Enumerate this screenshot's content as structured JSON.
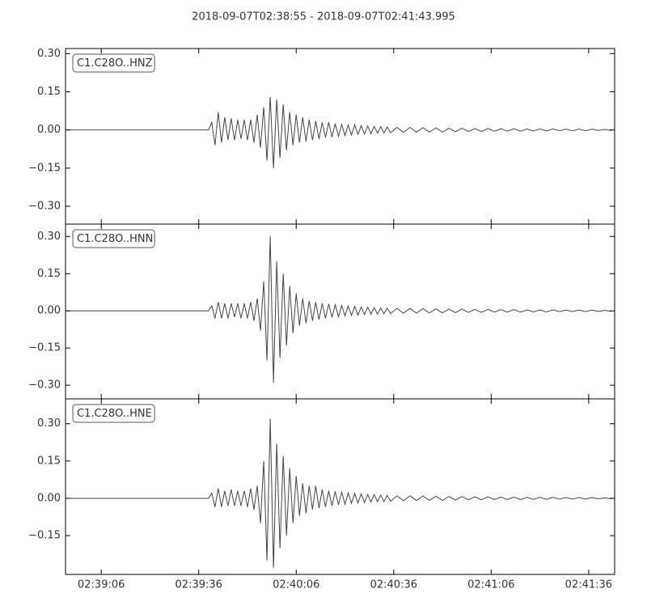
{
  "title": "2018-09-07T02:38:55  -  2018-09-07T02:41:43.995",
  "chart_data": [
    {
      "type": "line",
      "xlim": [
        0,
        168.995
      ],
      "ylim": [
        -0.37,
        0.32
      ],
      "yticks": [
        {
          "value": -0.3,
          "label": "−0.30"
        },
        {
          "value": -0.15,
          "label": "−0.15"
        },
        {
          "value": 0,
          "label": "0.00"
        },
        {
          "value": 0.15,
          "label": "0.15"
        },
        {
          "value": 0.3,
          "label": "0.30"
        }
      ],
      "x": [
        0,
        10,
        20,
        30,
        40,
        44,
        45,
        46,
        47,
        48,
        49,
        50,
        51,
        52,
        53,
        54,
        55,
        56,
        57,
        58,
        59,
        60,
        61,
        62,
        63,
        64,
        65,
        66,
        67,
        68,
        69,
        70,
        71,
        72,
        73,
        74,
        75,
        76,
        77,
        78,
        79,
        80,
        81,
        82,
        83,
        84,
        85,
        86,
        87,
        88,
        89,
        90,
        91,
        92,
        93,
        94,
        95,
        96,
        97,
        98,
        99,
        100,
        102,
        104,
        106,
        108,
        110,
        112,
        114,
        116,
        118,
        120,
        122,
        124,
        126,
        128,
        130,
        132,
        134,
        136,
        138,
        140,
        142,
        144,
        146,
        148,
        150,
        152,
        154,
        156,
        158,
        160,
        162,
        164,
        166,
        168
      ],
      "series": [
        {
          "name": "C1.C28O..HNZ",
          "color": "#444444",
          "values": [
            0,
            0,
            0,
            0,
            0,
            0,
            0.03,
            -0.06,
            0.07,
            -0.05,
            0.05,
            -0.04,
            0.045,
            -0.04,
            0.04,
            -0.035,
            0.04,
            -0.04,
            0.04,
            -0.05,
            0.06,
            -0.07,
            0.09,
            -0.12,
            0.13,
            -0.15,
            0.12,
            -0.11,
            0.1,
            -0.08,
            0.07,
            -0.06,
            0.06,
            -0.05,
            0.05,
            -0.045,
            0.04,
            -0.04,
            0.035,
            -0.035,
            0.03,
            -0.03,
            0.03,
            -0.028,
            0.025,
            -0.025,
            0.022,
            -0.022,
            0.02,
            -0.02,
            0.02,
            -0.018,
            0.017,
            -0.016,
            0.015,
            -0.015,
            0.014,
            -0.013,
            0.013,
            -0.012,
            0.012,
            -0.011,
            0.01,
            -0.01,
            0.01,
            -0.009,
            0.009,
            -0.008,
            0.008,
            -0.008,
            0.007,
            -0.007,
            0.007,
            -0.006,
            0.006,
            -0.006,
            0.006,
            -0.005,
            0.005,
            -0.005,
            0.005,
            -0.005,
            0.004,
            -0.004,
            0.004,
            -0.004,
            0.004,
            -0.003,
            0.003,
            -0.003,
            0.003,
            -0.003,
            0.003,
            -0.002,
            0.002,
            -0.002
          ]
        }
      ]
    },
    {
      "type": "line",
      "xlim": [
        0,
        168.995
      ],
      "ylim": [
        -0.355,
        0.35
      ],
      "yticks": [
        {
          "value": -0.3,
          "label": "−0.30"
        },
        {
          "value": -0.15,
          "label": "−0.15"
        },
        {
          "value": 0,
          "label": "0.00"
        },
        {
          "value": 0.15,
          "label": "0.15"
        },
        {
          "value": 0.3,
          "label": "0.30"
        }
      ],
      "x": [
        0,
        10,
        20,
        30,
        40,
        44,
        45,
        46,
        47,
        48,
        49,
        50,
        51,
        52,
        53,
        54,
        55,
        56,
        57,
        58,
        59,
        60,
        61,
        62,
        63,
        64,
        65,
        66,
        67,
        68,
        69,
        70,
        71,
        72,
        73,
        74,
        75,
        76,
        77,
        78,
        79,
        80,
        81,
        82,
        83,
        84,
        85,
        86,
        87,
        88,
        89,
        90,
        91,
        92,
        93,
        94,
        95,
        96,
        97,
        98,
        99,
        100,
        102,
        104,
        106,
        108,
        110,
        112,
        114,
        116,
        118,
        120,
        122,
        124,
        126,
        128,
        130,
        132,
        134,
        136,
        138,
        140,
        142,
        144,
        146,
        148,
        150,
        152,
        154,
        156,
        158,
        160,
        162,
        164,
        166,
        168
      ],
      "series": [
        {
          "name": "C1.C28O..HNN",
          "color": "#444444",
          "values": [
            0,
            0,
            0,
            0,
            0,
            0,
            0.02,
            -0.03,
            0.035,
            -0.03,
            0.03,
            -0.03,
            0.03,
            -0.025,
            0.03,
            -0.03,
            0.03,
            -0.03,
            0.035,
            -0.04,
            0.05,
            -0.08,
            0.12,
            -0.2,
            0.3,
            -0.29,
            0.2,
            -0.19,
            0.15,
            -0.14,
            0.1,
            -0.09,
            0.07,
            -0.06,
            0.05,
            -0.05,
            0.04,
            -0.04,
            0.035,
            -0.035,
            0.03,
            -0.03,
            0.028,
            -0.026,
            0.025,
            -0.024,
            0.022,
            -0.02,
            0.02,
            -0.019,
            0.018,
            -0.017,
            0.016,
            -0.015,
            0.015,
            -0.014,
            0.013,
            -0.013,
            0.012,
            -0.012,
            0.011,
            -0.011,
            0.01,
            -0.01,
            0.01,
            -0.009,
            0.009,
            -0.008,
            0.008,
            -0.008,
            0.007,
            -0.007,
            0.007,
            -0.006,
            0.006,
            -0.006,
            0.006,
            -0.005,
            0.005,
            -0.005,
            0.005,
            -0.005,
            0.004,
            -0.004,
            0.004,
            -0.004,
            0.004,
            -0.003,
            0.003,
            -0.003,
            0.003,
            -0.003,
            0.003,
            -0.002,
            0.002,
            -0.002
          ]
        }
      ]
    },
    {
      "type": "line",
      "xlim": [
        0,
        168.995
      ],
      "ylim": [
        -0.306,
        0.4
      ],
      "yticks": [
        {
          "value": -0.15,
          "label": "−0.15"
        },
        {
          "value": 0,
          "label": "0.00"
        },
        {
          "value": 0.15,
          "label": "0.15"
        },
        {
          "value": 0.3,
          "label": "0.30"
        }
      ],
      "xticks": [
        {
          "value": 11,
          "label": "02:39:06"
        },
        {
          "value": 41,
          "label": "02:39:36"
        },
        {
          "value": 71,
          "label": "02:40:06"
        },
        {
          "value": 101,
          "label": "02:40:36"
        },
        {
          "value": 131,
          "label": "02:41:06"
        },
        {
          "value": 161,
          "label": "02:41:36"
        }
      ],
      "x": [
        0,
        10,
        20,
        30,
        40,
        44,
        45,
        46,
        47,
        48,
        49,
        50,
        51,
        52,
        53,
        54,
        55,
        56,
        57,
        58,
        59,
        60,
        61,
        62,
        63,
        64,
        65,
        66,
        67,
        68,
        69,
        70,
        71,
        72,
        73,
        74,
        75,
        76,
        77,
        78,
        79,
        80,
        81,
        82,
        83,
        84,
        85,
        86,
        87,
        88,
        89,
        90,
        91,
        92,
        93,
        94,
        95,
        96,
        97,
        98,
        99,
        100,
        102,
        104,
        106,
        108,
        110,
        112,
        114,
        116,
        118,
        120,
        122,
        124,
        126,
        128,
        130,
        132,
        134,
        136,
        138,
        140,
        142,
        144,
        146,
        148,
        150,
        152,
        154,
        156,
        158,
        160,
        162,
        164,
        166,
        168
      ],
      "series": [
        {
          "name": "C1.C28O..HNE",
          "color": "#444444",
          "values": [
            0,
            0,
            0,
            0,
            0,
            0,
            0.02,
            -0.035,
            0.04,
            -0.035,
            0.03,
            -0.03,
            0.035,
            -0.03,
            0.03,
            -0.03,
            0.03,
            -0.035,
            0.04,
            -0.045,
            0.05,
            -0.1,
            0.15,
            -0.25,
            0.32,
            -0.28,
            0.22,
            -0.2,
            0.17,
            -0.15,
            0.12,
            -0.1,
            0.09,
            -0.07,
            0.06,
            -0.06,
            0.05,
            -0.045,
            0.05,
            -0.04,
            0.035,
            -0.035,
            0.03,
            -0.03,
            0.028,
            -0.026,
            0.025,
            -0.024,
            0.022,
            -0.02,
            0.02,
            -0.019,
            0.018,
            -0.017,
            0.016,
            -0.015,
            0.015,
            -0.014,
            0.013,
            -0.013,
            0.012,
            -0.012,
            0.01,
            -0.01,
            0.01,
            -0.009,
            0.009,
            -0.008,
            0.008,
            -0.008,
            0.007,
            -0.007,
            0.007,
            -0.006,
            0.006,
            -0.006,
            0.006,
            -0.005,
            0.005,
            -0.005,
            0.005,
            -0.005,
            0.004,
            -0.004,
            0.004,
            -0.004,
            0.004,
            -0.003,
            0.003,
            -0.003,
            0.003,
            -0.003,
            0.003,
            -0.002,
            0.002,
            -0.002
          ]
        }
      ]
    }
  ]
}
